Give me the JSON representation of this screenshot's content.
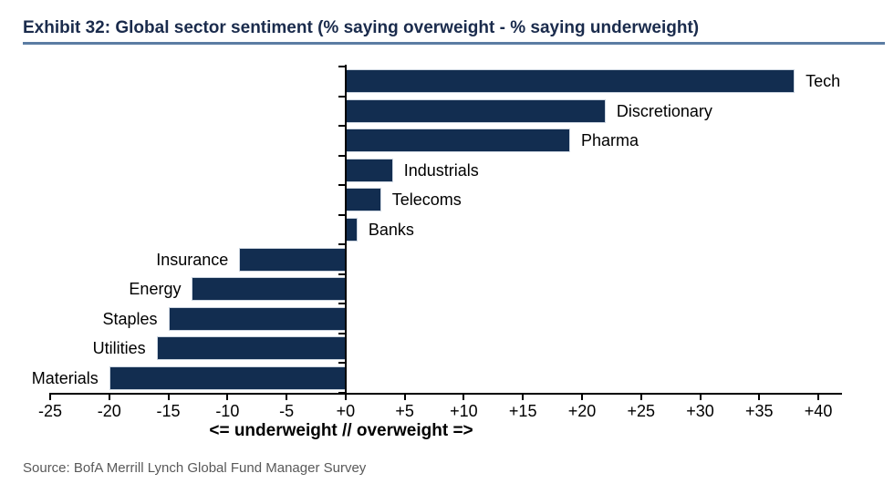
{
  "header": {
    "title": "Exhibit 32: Global sector sentiment (% saying overweight - % saying underweight)"
  },
  "chart_data": {
    "type": "bar",
    "orientation": "horizontal",
    "categories": [
      "Tech",
      "Discretionary",
      "Pharma",
      "Industrials",
      "Telecoms",
      "Banks",
      "Insurance",
      "Energy",
      "Staples",
      "Utilities",
      "Materials"
    ],
    "values": [
      38,
      22,
      19,
      4,
      3,
      1,
      -9,
      -13,
      -15,
      -16,
      -20
    ],
    "xlabel": "<= underweight // overweight =>",
    "xticks": [
      -25,
      -20,
      -15,
      -10,
      -5,
      0,
      5,
      10,
      15,
      20,
      25,
      30,
      35,
      40
    ],
    "xtick_labels": [
      "-25",
      "-20",
      "-15",
      "-10",
      "-5",
      "+0",
      "+5",
      "+10",
      "+15",
      "+20",
      "+25",
      "+30",
      "+35",
      "+40"
    ],
    "xlim": [
      -25,
      42
    ],
    "grid": false,
    "legend": false,
    "label_placement": "at bar ends, outside"
  },
  "colors": {
    "bar": "#122d50",
    "title": "#1a2b4c",
    "title_rule": "#5b7ca3",
    "axis": "#000000",
    "source": "#595959"
  },
  "source_line": "Source: BofA Merrill Lynch Global Fund Manager Survey"
}
